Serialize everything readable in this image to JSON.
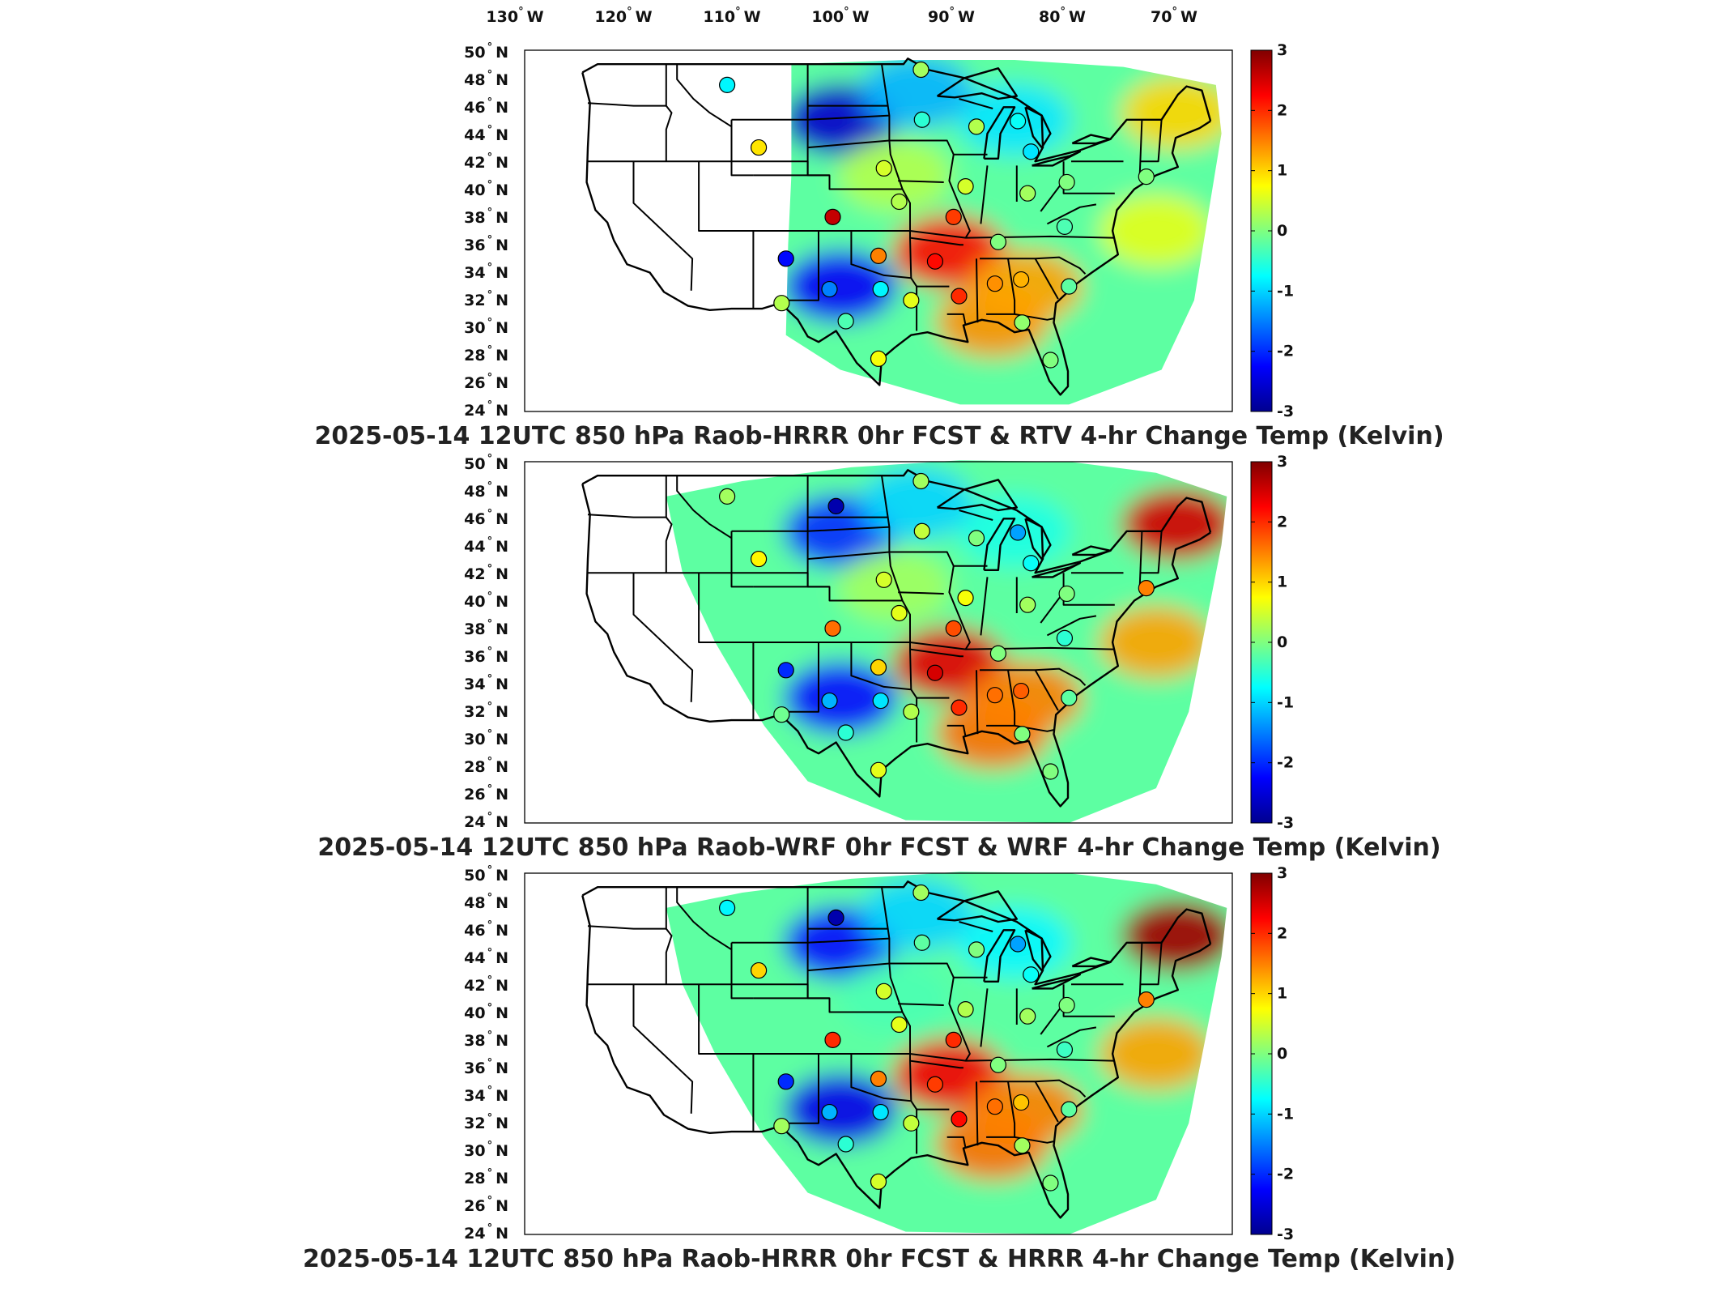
{
  "figure": {
    "date": "2025-05-14 12UTC",
    "lon_ticks": [
      {
        "num": "130",
        "hem": "W"
      },
      {
        "num": "120",
        "hem": "W"
      },
      {
        "num": "110",
        "hem": "W"
      },
      {
        "num": "100",
        "hem": "W"
      },
      {
        "num": "90",
        "hem": "W"
      },
      {
        "num": "80",
        "hem": "W"
      },
      {
        "num": "70",
        "hem": "W"
      }
    ],
    "lat_ticks": [
      {
        "num": "50",
        "hem": "N"
      },
      {
        "num": "48",
        "hem": "N"
      },
      {
        "num": "46",
        "hem": "N"
      },
      {
        "num": "44",
        "hem": "N"
      },
      {
        "num": "42",
        "hem": "N"
      },
      {
        "num": "40",
        "hem": "N"
      },
      {
        "num": "38",
        "hem": "N"
      },
      {
        "num": "36",
        "hem": "N"
      },
      {
        "num": "34",
        "hem": "N"
      },
      {
        "num": "32",
        "hem": "N"
      },
      {
        "num": "30",
        "hem": "N"
      },
      {
        "num": "28",
        "hem": "N"
      },
      {
        "num": "26",
        "hem": "N"
      },
      {
        "num": "24",
        "hem": "N"
      }
    ],
    "degree_symbol": "°"
  },
  "panels": [
    {
      "title": "2025-05-14 12UTC 850 hPa Raob-HRRR 0hr FCST & RTV 4-hr Change Temp (Kelvin)",
      "field": "rtv"
    },
    {
      "title": "2025-05-14 12UTC 850 hPa Raob-WRF 0hr FCST & WRF 4-hr Change Temp (Kelvin)",
      "field": "wrf"
    },
    {
      "title": "2025-05-14 12UTC 850 hPa Raob-HRRR 0hr FCST & HRRR 4-hr Change Temp (Kelvin)",
      "field": "hrrr"
    }
  ],
  "colorbar": {
    "ticks": [
      "3",
      "2",
      "1",
      "0",
      "-1",
      "-2",
      "-3"
    ],
    "range": [
      -3,
      3
    ],
    "colormap": [
      "#00008f",
      "#0000ff",
      "#00ffff",
      "#ffff00",
      "#ff0000",
      "#800000"
    ]
  },
  "chart_data": {
    "type": "map",
    "projection": "Lambert conformal (CONUS)",
    "xlabel": "",
    "ylabel": "",
    "lon_range": [
      -130,
      -65
    ],
    "lat_range": [
      24,
      50
    ],
    "value_units": "Kelvin",
    "raob_stations": [
      {
        "lon": -111.4,
        "lat": 47.5,
        "v": [
          -0.8,
          0.2,
          -0.8
        ]
      },
      {
        "lon": -101.4,
        "lat": 46.8,
        "v": [
          null,
          -2.8,
          -2.8
        ]
      },
      {
        "lon": -93.6,
        "lat": 48.6,
        "v": [
          0.2,
          0.2,
          0.2
        ]
      },
      {
        "lon": -108.5,
        "lat": 43.0,
        "v": [
          0.9,
          0.8,
          1.0
        ]
      },
      {
        "lon": -93.5,
        "lat": 45.0,
        "v": [
          -0.5,
          0.4,
          -0.2
        ]
      },
      {
        "lon": -88.5,
        "lat": 44.5,
        "v": [
          0.3,
          0.0,
          0.0
        ]
      },
      {
        "lon": -84.7,
        "lat": 44.9,
        "v": [
          -0.7,
          -1.3,
          -1.3
        ]
      },
      {
        "lon": -83.5,
        "lat": 42.7,
        "v": [
          -0.9,
          -0.7,
          -0.7
        ]
      },
      {
        "lon": -97.0,
        "lat": 41.5,
        "v": [
          0.5,
          0.5,
          0.5
        ]
      },
      {
        "lon": -89.5,
        "lat": 40.2,
        "v": [
          0.5,
          0.7,
          0.3
        ]
      },
      {
        "lon": -83.8,
        "lat": 39.7,
        "v": [
          0.2,
          0.2,
          0.2
        ]
      },
      {
        "lon": -80.2,
        "lat": 40.5,
        "v": [
          0.0,
          0.0,
          0.0
        ]
      },
      {
        "lon": -72.9,
        "lat": 40.9,
        "v": [
          0.0,
          1.5,
          1.5
        ]
      },
      {
        "lon": -101.7,
        "lat": 38.0,
        "v": [
          2.6,
          1.6,
          2.0
        ]
      },
      {
        "lon": -95.6,
        "lat": 39.1,
        "v": [
          0.3,
          0.6,
          0.6
        ]
      },
      {
        "lon": -90.6,
        "lat": 38.0,
        "v": [
          1.9,
          1.8,
          2.0
        ]
      },
      {
        "lon": -86.5,
        "lat": 36.2,
        "v": [
          0.0,
          0.0,
          0.0
        ]
      },
      {
        "lon": -80.4,
        "lat": 37.3,
        "v": [
          -0.3,
          -0.5,
          -0.4
        ]
      },
      {
        "lon": -97.5,
        "lat": 35.2,
        "v": [
          1.5,
          1.0,
          1.5
        ]
      },
      {
        "lon": -92.3,
        "lat": 34.8,
        "v": [
          2.2,
          2.5,
          1.9
        ]
      },
      {
        "lon": -106.0,
        "lat": 35.0,
        "v": [
          -2.2,
          -2.0,
          -2.0
        ]
      },
      {
        "lon": -102.0,
        "lat": 32.8,
        "v": [
          -1.5,
          -1.2,
          -1.2
        ]
      },
      {
        "lon": -97.3,
        "lat": 32.8,
        "v": [
          -0.8,
          -0.9,
          -0.9
        ]
      },
      {
        "lon": -94.5,
        "lat": 32.0,
        "v": [
          0.6,
          0.3,
          0.4
        ]
      },
      {
        "lon": -90.1,
        "lat": 32.3,
        "v": [
          2.0,
          2.0,
          2.2
        ]
      },
      {
        "lon": -86.8,
        "lat": 33.2,
        "v": [
          1.4,
          1.6,
          1.6
        ]
      },
      {
        "lon": -84.4,
        "lat": 33.5,
        "v": [
          1.2,
          1.7,
          1.1
        ]
      },
      {
        "lon": -80.0,
        "lat": 33.0,
        "v": [
          -0.2,
          -0.2,
          -0.2
        ]
      },
      {
        "lon": -106.4,
        "lat": 31.8,
        "v": [
          0.3,
          -0.1,
          0.2
        ]
      },
      {
        "lon": -100.5,
        "lat": 30.5,
        "v": [
          -0.3,
          -0.5,
          -0.5
        ]
      },
      {
        "lon": -97.5,
        "lat": 27.8,
        "v": [
          0.7,
          0.6,
          0.5
        ]
      },
      {
        "lon": -84.3,
        "lat": 30.4,
        "v": [
          0.1,
          0.0,
          0.2
        ]
      },
      {
        "lon": -81.7,
        "lat": 27.7,
        "v": [
          0.0,
          0.0,
          0.0
        ]
      }
    ],
    "field_regions": [
      {
        "name": "northern plains cold band",
        "lon": -101,
        "lat": 45,
        "v": [
          -2.6,
          -2.0,
          -2.2
        ]
      },
      {
        "name": "southern plains cold band",
        "lon": -101,
        "lat": 33,
        "v": [
          -2.3,
          -2.2,
          -2.4
        ]
      },
      {
        "name": "lower mississippi valley warm band",
        "lon": -91,
        "lat": 35.5,
        "v": [
          2.2,
          2.4,
          2.3
        ]
      },
      {
        "name": "gulf coast warm region",
        "lon": -87,
        "lat": 30.5,
        "v": [
          1.4,
          1.6,
          1.6
        ]
      },
      {
        "name": "southeast warm region",
        "lon": -84,
        "lat": 33,
        "v": [
          1.3,
          1.5,
          1.5
        ]
      },
      {
        "name": "great lakes cool region",
        "lon": -85,
        "lat": 45,
        "v": [
          -0.9,
          -0.6,
          -0.8
        ]
      },
      {
        "name": "new england warm region",
        "lon": -70,
        "lat": 45.5,
        "v": [
          1.0,
          2.5,
          2.8
        ]
      },
      {
        "name": "atlantic offshore band",
        "lon": -72,
        "lat": 37,
        "v": [
          0.6,
          1.3,
          1.3
        ]
      },
      {
        "name": "upper midwest cool region",
        "lon": -94,
        "lat": 47,
        "v": [
          -1.2,
          -1.0,
          -1.0
        ]
      },
      {
        "name": "central plains neutral",
        "lon": -96,
        "lat": 41,
        "v": [
          0.3,
          0.2,
          -0.3
        ]
      }
    ]
  }
}
